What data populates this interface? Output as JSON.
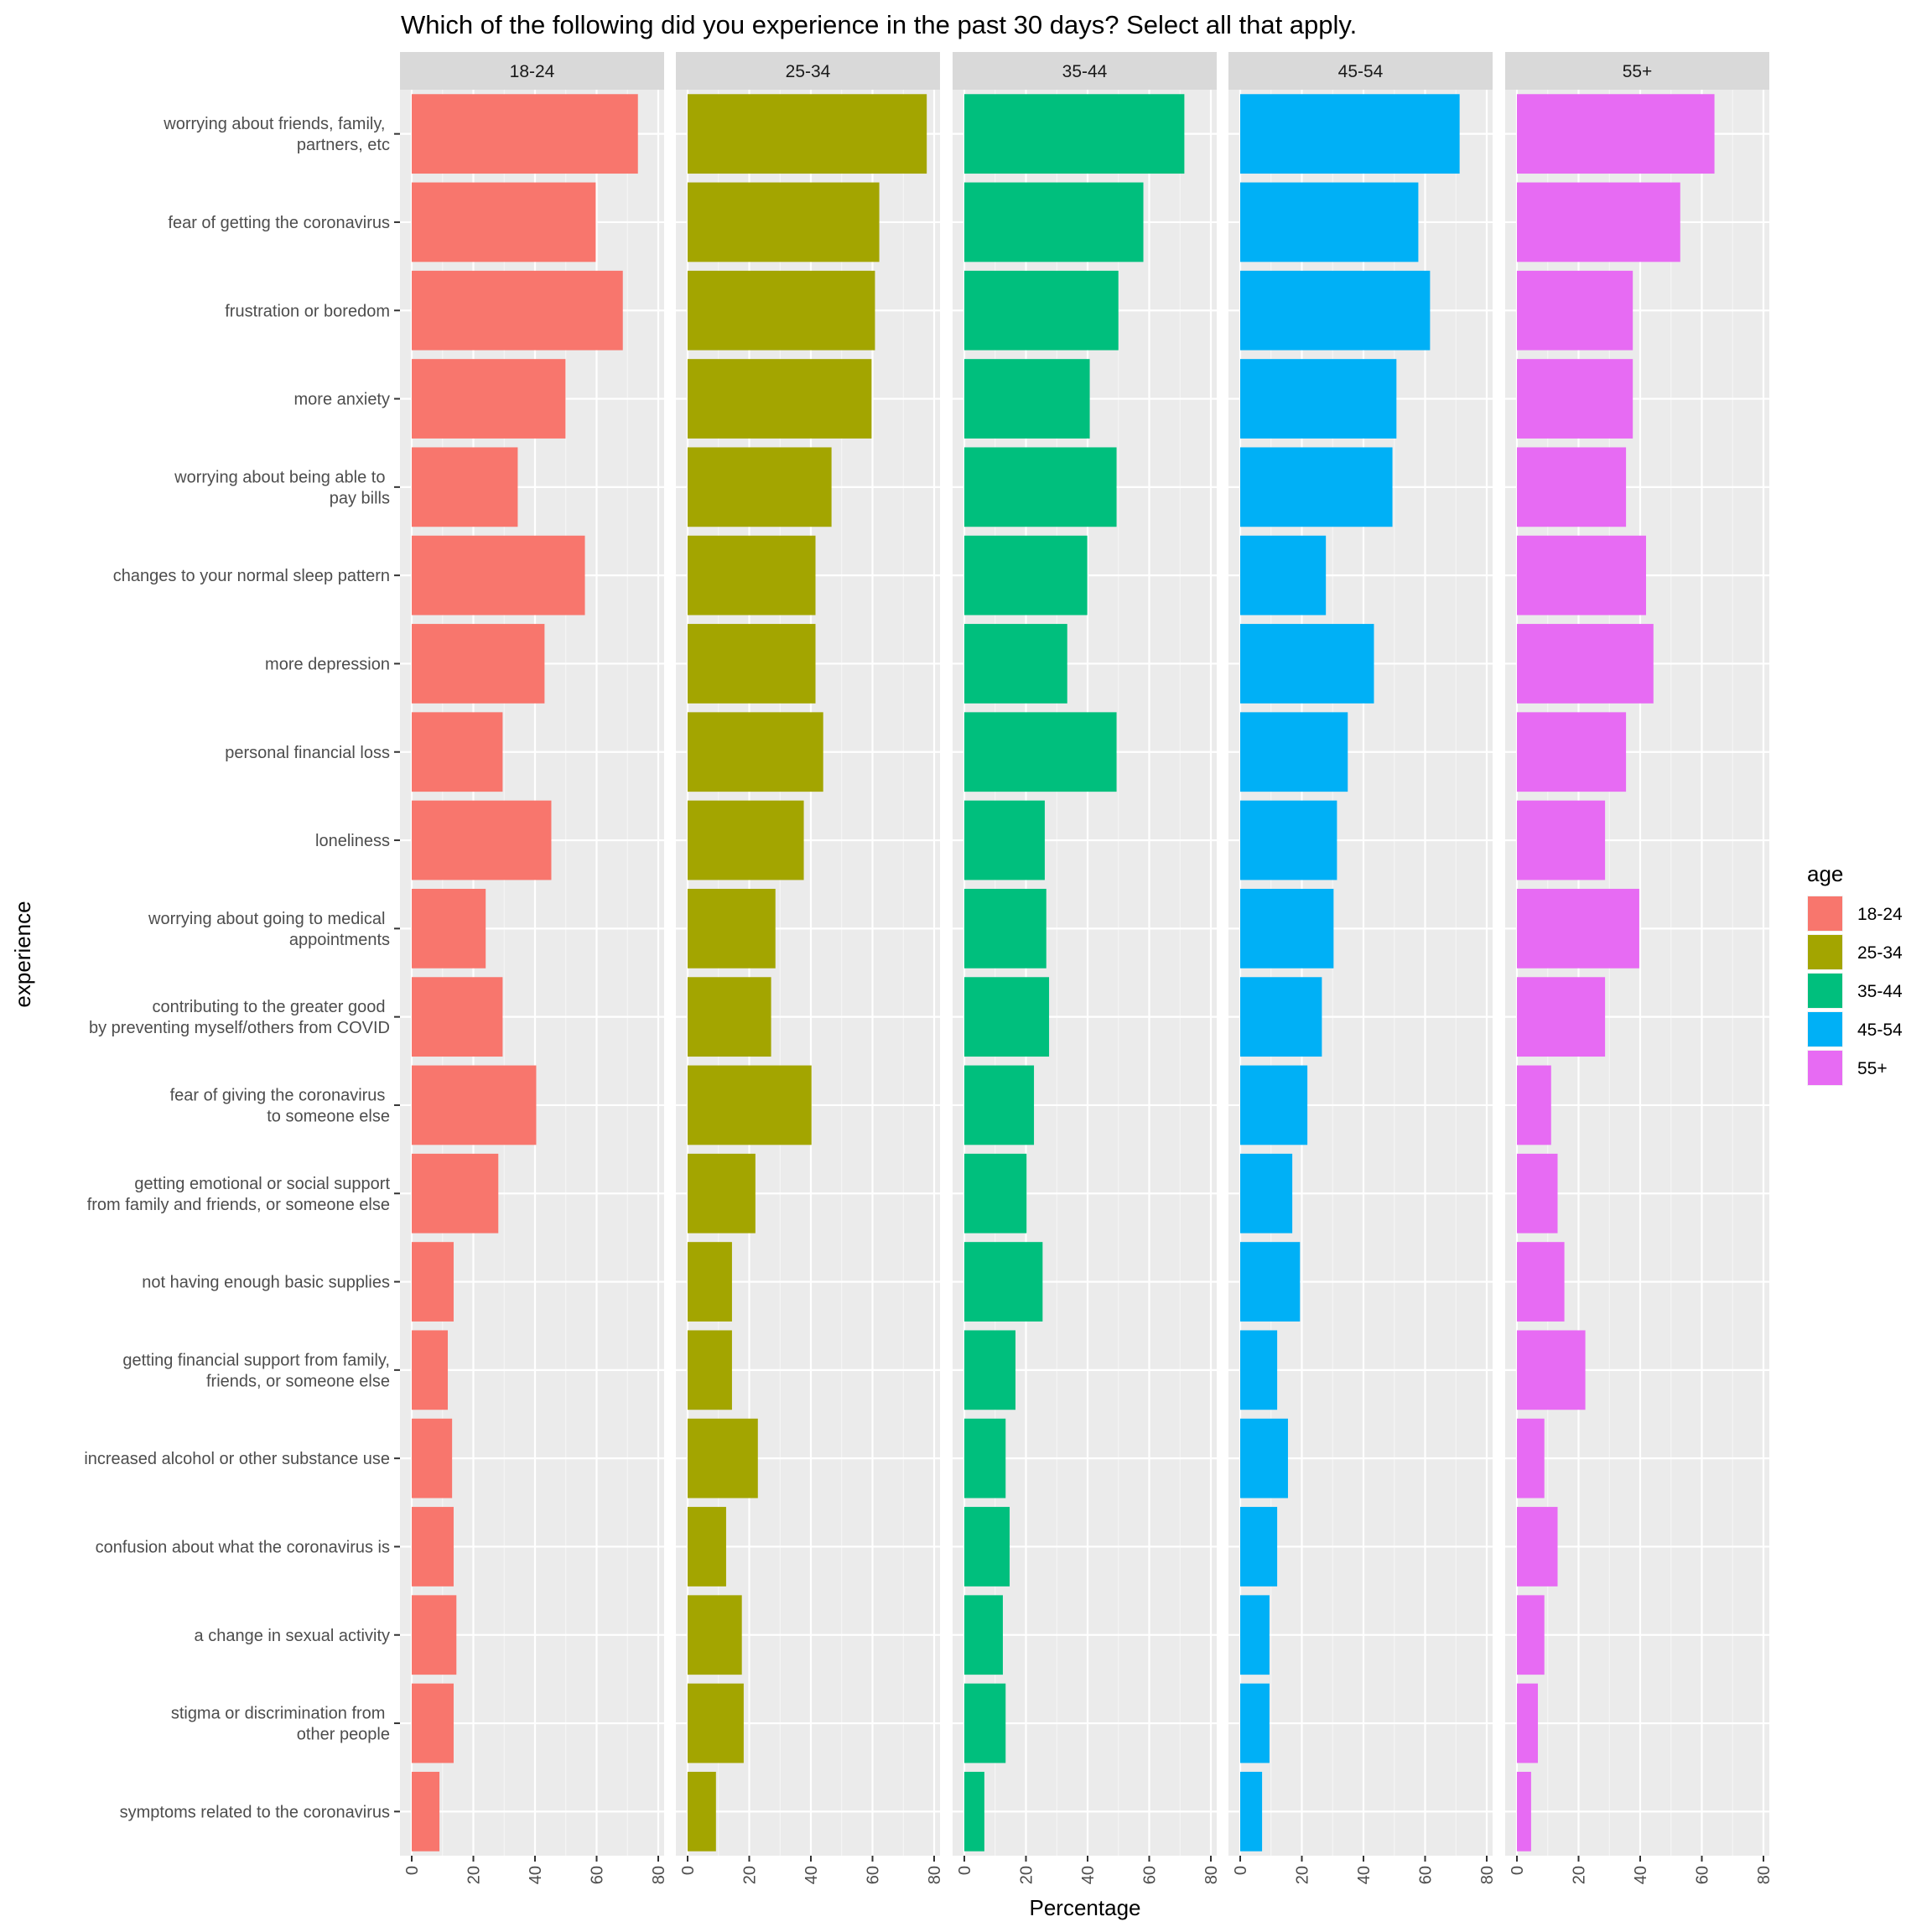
{
  "chart_data": {
    "type": "bar",
    "orientation": "horizontal",
    "faceted": true,
    "title": "Which of the following did you experience in the past 30 days? Select all that apply.",
    "xlabel": "Percentage",
    "ylabel": "experience",
    "xlim": [
      0,
      80
    ],
    "xticks": [
      "0",
      "20",
      "40",
      "60",
      "80"
    ],
    "grid": true,
    "legend": {
      "title": "age",
      "position": "right",
      "entries": [
        "18-24",
        "25-34",
        "35-44",
        "45-54",
        "55+"
      ]
    },
    "categories": [
      "worrying about friends, family, \npartners, etc",
      "fear of getting the coronavirus",
      "frustration or boredom",
      "more anxiety",
      "worrying about being able to \npay bills",
      "changes to your normal sleep pattern",
      "more depression",
      "personal financial loss",
      "loneliness",
      "worrying about going to medical \nappointments",
      "contributing to the greater good \nby preventing myself/others from COVID",
      "fear of giving the coronavirus \nto someone else",
      "getting emotional or social support\nfrom family and friends, or someone else",
      "not having enough basic supplies",
      "getting financial support from family,\nfriends, or someone else",
      "increased alcohol or other substance use",
      "confusion about what the coronavirus is",
      "a change in sexual activity",
      "stigma or discrimination from \nother people",
      "symptoms related to the coronavirus"
    ],
    "series": [
      {
        "name": "18-24",
        "color": "#F8766D",
        "values": [
          73.4,
          59.7,
          68.5,
          49.9,
          34.4,
          56.2,
          43.1,
          29.5,
          45.3,
          24.0,
          29.5,
          40.4,
          28.1,
          13.6,
          11.7,
          13.1,
          13.6,
          14.5,
          13.6,
          9.0
        ]
      },
      {
        "name": "25-34",
        "color": "#A3A500",
        "values": [
          77.6,
          62.2,
          60.8,
          59.7,
          46.7,
          41.5,
          41.5,
          44.0,
          37.7,
          28.5,
          27.1,
          40.2,
          22.0,
          14.4,
          14.4,
          22.8,
          12.5,
          17.6,
          18.2,
          9.2
        ]
      },
      {
        "name": "35-44",
        "color": "#00BF7D",
        "values": [
          71.4,
          58.1,
          50.0,
          40.7,
          49.4,
          39.9,
          33.4,
          49.4,
          26.1,
          26.6,
          27.5,
          22.6,
          20.2,
          25.4,
          16.6,
          13.4,
          14.7,
          12.5,
          13.4,
          6.5
        ]
      },
      {
        "name": "45-54",
        "color": "#00B0F6",
        "values": [
          71.2,
          57.8,
          61.6,
          50.7,
          49.4,
          27.8,
          43.4,
          34.9,
          31.4,
          30.3,
          26.5,
          21.8,
          16.9,
          19.4,
          12.0,
          15.5,
          12.0,
          9.5,
          9.5,
          7.1
        ]
      },
      {
        "name": "55+",
        "color": "#E76BF3",
        "values": [
          64.1,
          53.0,
          37.6,
          37.6,
          35.4,
          41.9,
          44.3,
          35.4,
          28.6,
          39.7,
          28.6,
          11.1,
          13.2,
          15.4,
          22.2,
          8.9,
          13.2,
          8.9,
          6.8,
          4.6
        ]
      }
    ]
  },
  "theme": {
    "panel_bg": "#EBEBEB",
    "strip_bg": "#D9D9D9",
    "grid_major": "#FFFFFF",
    "tick_color": "#333333"
  }
}
